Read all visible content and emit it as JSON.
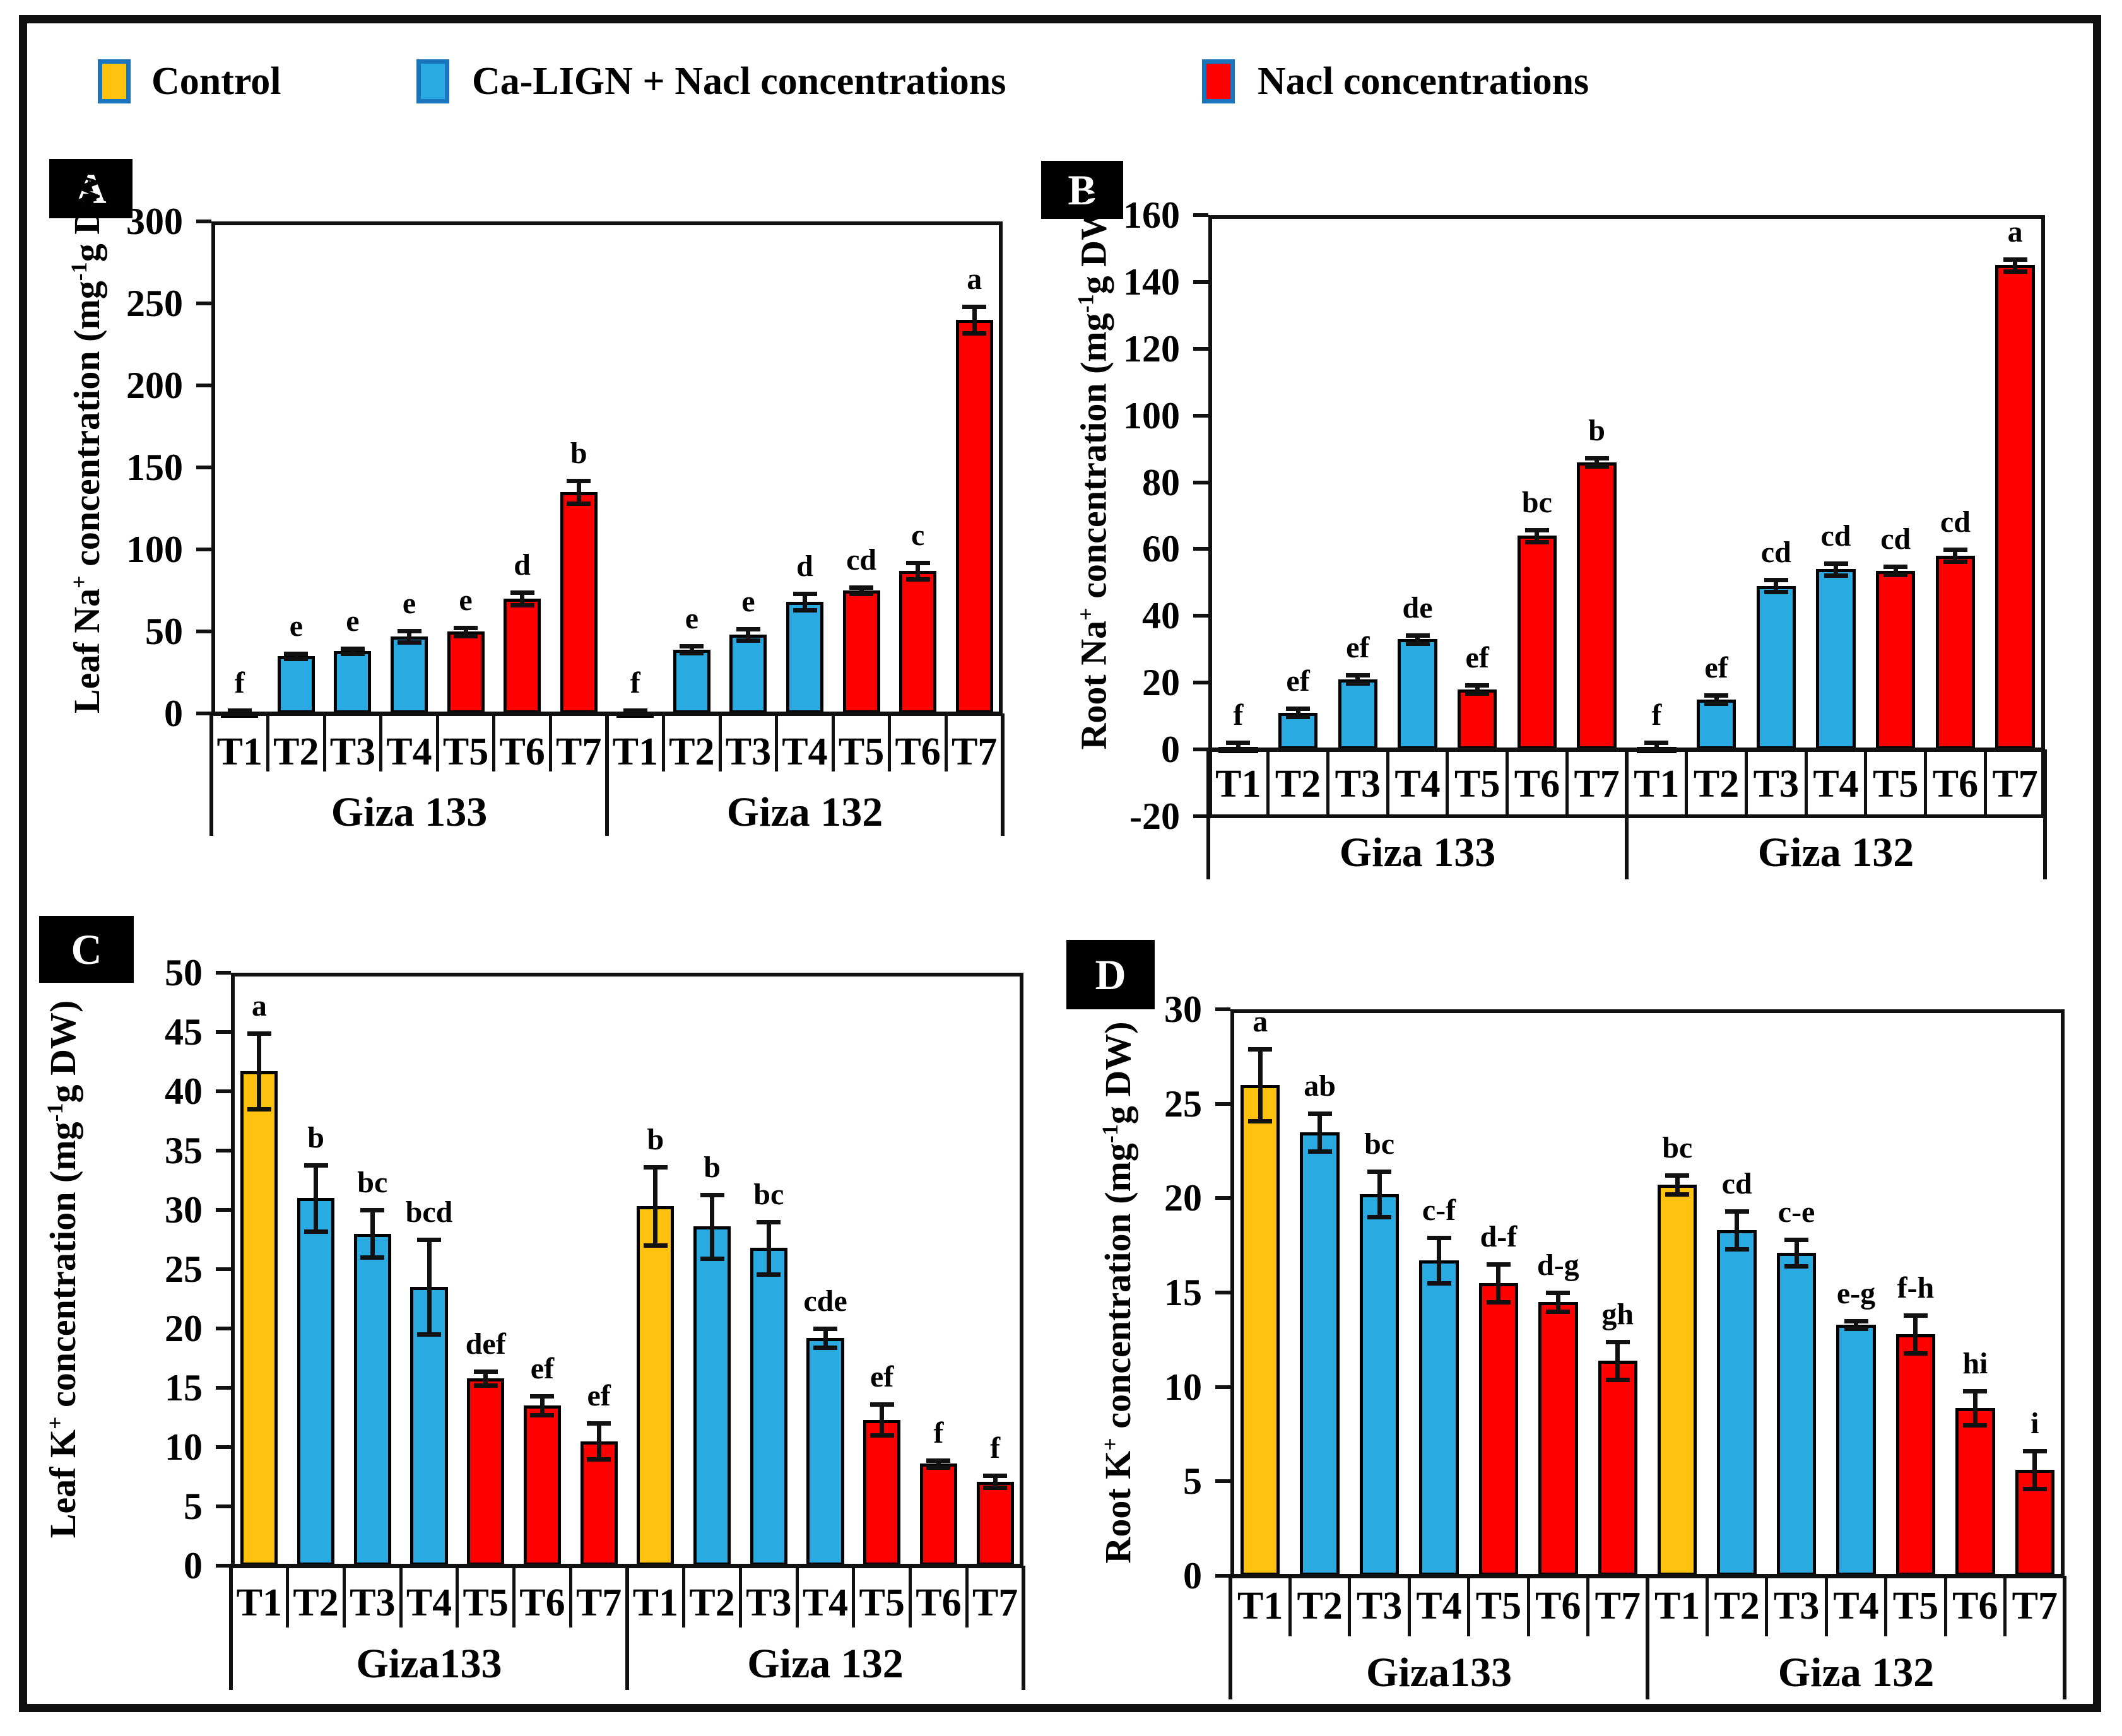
{
  "legend": {
    "items": [
      {
        "label": "Control",
        "color_key": "control"
      },
      {
        "label": "Ca-LIGN + Nacl concentrations",
        "color_key": "ca_lign"
      },
      {
        "label": "Nacl concentrations",
        "color_key": "nacl"
      }
    ]
  },
  "colors": {
    "control": "#FFC20E",
    "ca_lign": "#29ABE2",
    "nacl": "#FF0000",
    "swatch_border": "#1B75BC",
    "axis": "#111111"
  },
  "chart_data": [
    {
      "type": "bar",
      "panel_letter": "A",
      "ylabel_parts": [
        "Leaf Na",
        "+",
        " concentration (mg",
        "-1",
        "g DW)"
      ],
      "ylim": [
        0,
        300
      ],
      "yticks": [
        0,
        50,
        100,
        150,
        200,
        250,
        300
      ],
      "grid": false,
      "groups": [
        {
          "label": "Giza 133",
          "categories": [
            "T1",
            "T2",
            "T3",
            "T4",
            "T5",
            "T6",
            "T7"
          ],
          "values": [
            1,
            35,
            38,
            47,
            50,
            70,
            135
          ],
          "errors": [
            0.8,
            1.5,
            1.5,
            3.5,
            2.5,
            4,
            7
          ],
          "letters": [
            "f",
            "e",
            "e",
            "e",
            "e",
            "d",
            "b"
          ],
          "bar_colors": [
            "control",
            "ca_lign",
            "ca_lign",
            "ca_lign",
            "nacl",
            "nacl",
            "nacl"
          ]
        },
        {
          "label": "Giza 132",
          "categories": [
            "T1",
            "T2",
            "T3",
            "T4",
            "T5",
            "T6",
            "T7"
          ],
          "values": [
            1,
            39,
            48,
            68,
            75,
            87,
            240
          ],
          "errors": [
            0.8,
            2,
            3.5,
            5,
            2,
            5,
            8
          ],
          "letters": [
            "f",
            "e",
            "e",
            "d",
            "cd",
            "c",
            "a"
          ],
          "bar_colors": [
            "control",
            "ca_lign",
            "ca_lign",
            "ca_lign",
            "nacl",
            "nacl",
            "nacl"
          ]
        }
      ]
    },
    {
      "type": "bar",
      "panel_letter": "B",
      "ylabel_parts": [
        "Root Na",
        "+",
        " concentration (mg",
        "-1",
        "g DW)"
      ],
      "ylim": [
        -20,
        160
      ],
      "yticks": [
        -20,
        0,
        20,
        40,
        60,
        80,
        100,
        120,
        140,
        160
      ],
      "grid": false,
      "groups": [
        {
          "label": "Giza 133",
          "categories": [
            "T1",
            "T2",
            "T3",
            "T4",
            "T5",
            "T6",
            "T7"
          ],
          "values": [
            0.8,
            11,
            21,
            33,
            18,
            64,
            86
          ],
          "errors": [
            1.2,
            1.2,
            1.2,
            1.2,
            1.2,
            1.8,
            1.2
          ],
          "letters": [
            "f",
            "ef",
            "ef",
            "de",
            "ef",
            "bc",
            "b"
          ],
          "bar_colors": [
            "control",
            "ca_lign",
            "ca_lign",
            "ca_lign",
            "nacl",
            "nacl",
            "nacl"
          ]
        },
        {
          "label": "Giza 132",
          "categories": [
            "T1",
            "T2",
            "T3",
            "T4",
            "T5",
            "T6",
            "T7"
          ],
          "values": [
            0.8,
            15,
            49,
            54,
            53.5,
            58,
            145
          ],
          "errors": [
            1.2,
            1.2,
            1.8,
            1.8,
            1.2,
            1.8,
            1.8
          ],
          "letters": [
            "f",
            "ef",
            "cd",
            "cd",
            "cd",
            "cd",
            "a"
          ],
          "bar_colors": [
            "control",
            "ca_lign",
            "ca_lign",
            "ca_lign",
            "nacl",
            "nacl",
            "nacl"
          ]
        }
      ]
    },
    {
      "type": "bar",
      "panel_letter": "C",
      "ylabel_parts": [
        "Leaf K",
        "+",
        " concentration (mg",
        "-1",
        "g DW)"
      ],
      "ylim": [
        0,
        50
      ],
      "yticks": [
        0,
        5,
        10,
        15,
        20,
        25,
        30,
        35,
        40,
        45,
        50
      ],
      "grid": false,
      "groups": [
        {
          "label": "Giza133",
          "categories": [
            "T1",
            "T2",
            "T3",
            "T4",
            "T5",
            "T6",
            "T7"
          ],
          "values": [
            41.7,
            31,
            28,
            23.5,
            15.8,
            13.5,
            10.5
          ],
          "errors": [
            3.2,
            2.8,
            2,
            4,
            0.6,
            0.8,
            1.5
          ],
          "letters": [
            "a",
            "b",
            "bc",
            "bcd",
            "def",
            "ef",
            "ef"
          ],
          "bar_colors": [
            "control",
            "ca_lign",
            "ca_lign",
            "ca_lign",
            "nacl",
            "nacl",
            "nacl"
          ]
        },
        {
          "label": "Giza 132",
          "categories": [
            "T1",
            "T2",
            "T3",
            "T4",
            "T5",
            "T6",
            "T7"
          ],
          "values": [
            30.3,
            28.6,
            26.8,
            19.2,
            12.3,
            8.6,
            7.1
          ],
          "errors": [
            3.3,
            2.7,
            2.2,
            0.8,
            1.3,
            0.3,
            0.5
          ],
          "letters": [
            "b",
            "b",
            "bc",
            "cde",
            "ef",
            "f",
            "f"
          ],
          "bar_colors": [
            "control",
            "ca_lign",
            "ca_lign",
            "ca_lign",
            "nacl",
            "nacl",
            "nacl"
          ]
        }
      ]
    },
    {
      "type": "bar",
      "panel_letter": "D",
      "ylabel_parts": [
        "Root K",
        "+",
        " concentration (mg",
        "-1",
        "g DW)"
      ],
      "ylim": [
        0,
        30
      ],
      "yticks": [
        0,
        5,
        10,
        15,
        20,
        25,
        30
      ],
      "grid": false,
      "groups": [
        {
          "label": "Giza133",
          "categories": [
            "T1",
            "T2",
            "T3",
            "T4",
            "T5",
            "T6",
            "T7"
          ],
          "values": [
            26,
            23.5,
            20.2,
            16.7,
            15.5,
            14.5,
            11.4
          ],
          "errors": [
            1.9,
            1,
            1.2,
            1.2,
            1,
            0.5,
            1
          ],
          "letters": [
            "a",
            "ab",
            "bc",
            "c-f",
            "d-f",
            "d-g",
            "gh"
          ],
          "bar_colors": [
            "control",
            "ca_lign",
            "ca_lign",
            "ca_lign",
            "nacl",
            "nacl",
            "nacl"
          ]
        },
        {
          "label": "Giza 132",
          "categories": [
            "T1",
            "T2",
            "T3",
            "T4",
            "T5",
            "T6",
            "T7"
          ],
          "values": [
            20.7,
            18.3,
            17.1,
            13.3,
            12.8,
            8.9,
            5.6
          ],
          "errors": [
            0.5,
            1,
            0.7,
            0.2,
            1,
            0.9,
            1
          ],
          "letters": [
            "bc",
            "cd",
            "c-e",
            "e-g",
            "f-h",
            "hi",
            "i"
          ],
          "bar_colors": [
            "control",
            "ca_lign",
            "ca_lign",
            "ca_lign",
            "nacl",
            "nacl",
            "nacl"
          ]
        }
      ]
    }
  ]
}
